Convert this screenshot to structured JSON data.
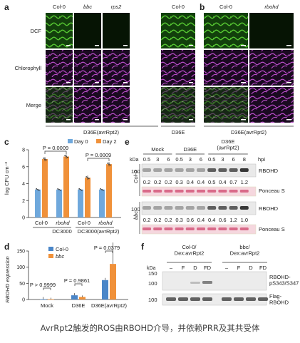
{
  "panel_letters": {
    "a": "a",
    "b": "b",
    "c": "c",
    "d": "d",
    "e": "e",
    "f": "f"
  },
  "panel_a": {
    "columns": [
      "Col-0",
      "bbc",
      "rps2",
      "Col-0"
    ],
    "rows": [
      "DCF",
      "Chlorophyll",
      "Merge"
    ],
    "group_labels": [
      "D36E(avrRpt2)",
      "D36E"
    ]
  },
  "panel_b": {
    "columns": [
      "Col-0",
      "rbohd"
    ],
    "group_label": "D36E(avrRpt2)"
  },
  "panel_c": {
    "legend": [
      "Day 0",
      "Day 2"
    ],
    "ylabel": "log CFU cm⁻²",
    "yticks": [
      "0",
      "2",
      "4",
      "6",
      "8"
    ],
    "pvalues": [
      "P = 0.0009",
      "P = 0.0009"
    ],
    "genotypes": [
      "Col-0",
      "rbohd",
      "Col-0",
      "rbohd"
    ],
    "strains": [
      "DC3000",
      "DC3000(avrRpt2)"
    ],
    "colors": {
      "day0": "#6fa8dc",
      "day2": "#f0913a"
    },
    "chart_data": {
      "type": "bar",
      "categories": [
        "Col-0 DC3000",
        "rbohd DC3000",
        "Col-0 DC3000(avrRpt2)",
        "rbohd DC3000(avrRpt2)"
      ],
      "series": [
        {
          "name": "Day 0",
          "values": [
            3.3,
            3.3,
            3.3,
            3.3
          ]
        },
        {
          "name": "Day 2",
          "values": [
            6.9,
            7.2,
            4.7,
            6.3
          ]
        }
      ],
      "ylim": [
        0,
        8
      ]
    }
  },
  "panel_d": {
    "legend": [
      "Col-0",
      "bbc"
    ],
    "ylabel": "RBOHD expression",
    "yticks": [
      "0",
      "50",
      "100",
      "150"
    ],
    "pvalues": [
      "P > 0.9999",
      "P = 0.9861",
      "P = 0.0379"
    ],
    "categories": [
      "Mock",
      "D36E",
      "D36E(avrRpt2)"
    ],
    "colors": {
      "col0": "#4a86c8",
      "bbc": "#f0913a"
    },
    "chart_data": {
      "type": "bar",
      "categories": [
        "Mock",
        "D36E",
        "D36E(avrRpt2)"
      ],
      "series": [
        {
          "name": "Col-0",
          "values": [
            1,
            13,
            60
          ]
        },
        {
          "name": "bbc",
          "values": [
            1,
            8,
            110
          ]
        }
      ],
      "ylim": [
        0,
        150
      ]
    }
  },
  "panel_e": {
    "groups": [
      "Mock",
      "D36E",
      "D36E\n(avrRpt2)"
    ],
    "hpi_label": "hpi",
    "hpi": [
      "0.5",
      "3",
      "6",
      "0.5",
      "3",
      "6",
      "0.5",
      "3",
      "6",
      "8"
    ],
    "col0_values": [
      "0.2",
      "0.2",
      "0.2",
      "0.3",
      "0.4",
      "0.4",
      "0.5",
      "0.4",
      "0.7",
      "1.2"
    ],
    "bbc_values": [
      "0.2",
      "0.2",
      "0.2",
      "0.3",
      "0.6",
      "0.4",
      "0.4",
      "0.6",
      "1.2",
      "1.0"
    ],
    "highlight_color": "#d0312d",
    "row_labels": [
      "RBOHD",
      "Ponceau S",
      "RBOHD",
      "Ponceau S"
    ],
    "genotypes": [
      "Col-0",
      "bbc"
    ],
    "kda": [
      "kDa",
      "100",
      "100"
    ]
  },
  "panel_f": {
    "headers": [
      "Col-0/\nDex:avrRpt2",
      "bbc/\nDex:avrRpt2"
    ],
    "lanes": [
      "–",
      "F",
      "D",
      "FD",
      "–",
      "F",
      "D",
      "FD"
    ],
    "kda": [
      "kDa",
      "150",
      "100",
      "100"
    ],
    "row_labels": [
      "RBOHD-\npS343/S347",
      "Flag-\nRBOHD"
    ]
  },
  "caption": "AvrRpt2触发的ROS由RBOHD介导，并依赖PRR及其共受体"
}
